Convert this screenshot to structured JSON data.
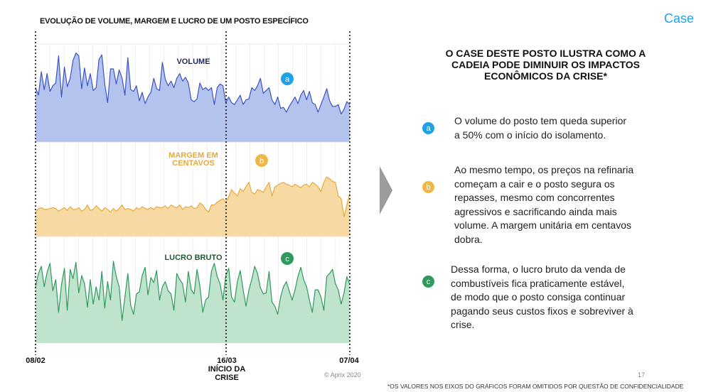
{
  "header": {
    "chart_title": "EVOLUÇÃO DE VOLUME, MARGEM E LUCRO DE UM POSTO ESPECÍFICO",
    "case_label": "Case"
  },
  "dates": {
    "start": "08/02",
    "middle": "16/03",
    "middle_note_1": "INÍCIO DA",
    "middle_note_2": "CRISE",
    "end": "07/04"
  },
  "footer": {
    "copyright": "© Aprix 2020",
    "page_number": "17",
    "footnote": "*OS VALORES NOS EIXOS DO GRÁFICOS FORAM OMITIDOS POR QUESTÃO DE CONFIDENCIALIDADE"
  },
  "right_panel": {
    "headline_1": "O CASE DESTE POSTO ILUSTRA COMO A",
    "headline_2": "CADEIA PODE DIMINUIR OS IMPACTOS",
    "headline_3": "ECONÔMICOS DA CRISE*",
    "points": [
      {
        "badge": "a",
        "color": "#1fa3e6",
        "lines": [
          "O volume do posto tem queda superior",
          "a 50% com o início do isolamento."
        ]
      },
      {
        "badge": "b",
        "color": "#f0b743",
        "lines": [
          "Ao mesmo tempo, os preços na refinaria",
          "começam a cair e o posto segura os",
          "repasses, mesmo com concorrentes",
          "agressivos e sacrificando ainda mais",
          "volume. A margem unitária em centavos",
          "dobra."
        ]
      },
      {
        "badge": "c",
        "color": "#2e9a5e",
        "lines": [
          "Dessa forma, o lucro bruto da venda de",
          "combustíveis fica praticamente estável,",
          " de  modo que o posto consiga continuar",
          "pagando seus custos fixos e sobreviver à",
          "crise."
        ]
      }
    ]
  },
  "colors": {
    "volume_line": "#3b55c8",
    "volume_fill": "#b4c2ee",
    "margem_line": "#e9a93c",
    "margem_fill": "#f7d9a3",
    "lucro_line": "#2f9a5e",
    "lucro_fill": "#bfe3cc",
    "volume_label": "#1e2a5a",
    "margem_label": "#e9a93c",
    "lucro_label": "#1f5a32",
    "badge_a": "#1fa3e6",
    "badge_b": "#f0b743",
    "badge_c": "#2e9a5e"
  },
  "chart_data": [
    {
      "type": "area",
      "title": "VOLUME",
      "badge": "a",
      "x_start": "08/02",
      "x_marker": "16/03",
      "x_end": "07/04",
      "axis_values_hidden": true,
      "series": [
        {
          "values": [
            58,
            50,
            75,
            56,
            73,
            54,
            60,
            63,
            92,
            48,
            80,
            59,
            68,
            87,
            95,
            92,
            57,
            79,
            60,
            73,
            55,
            58,
            88,
            93,
            62,
            42,
            78,
            78,
            62,
            77,
            68,
            50,
            90,
            56,
            54,
            60,
            44,
            53,
            41,
            48,
            53,
            68,
            57,
            55,
            85,
            67,
            60,
            65,
            58,
            68,
            73,
            65,
            69,
            63,
            45,
            43,
            46,
            63,
            56,
            58,
            55,
            58,
            40,
            58,
            62,
            60,
            42,
            48,
            42,
            40,
            45,
            50,
            40,
            45,
            46,
            58,
            55,
            60,
            68,
            52,
            55,
            58,
            45,
            40,
            48,
            36,
            37,
            32,
            38,
            43,
            48,
            41,
            50,
            55,
            45,
            54,
            42,
            40,
            32,
            40,
            48,
            57,
            44,
            38,
            38,
            40,
            30,
            35,
            43,
            40
          ]
        }
      ]
    },
    {
      "type": "area",
      "title": "MARGEM EM CENTAVOS",
      "badge": "b",
      "x_start": "08/02",
      "x_marker": "16/03",
      "x_end": "07/04",
      "axis_values_hidden": true,
      "series": [
        {
          "values": [
            27,
            31,
            32,
            30,
            30,
            31,
            32,
            31,
            28,
            30,
            32,
            29,
            33,
            30,
            30,
            32,
            28,
            30,
            35,
            29,
            30,
            34,
            31,
            28,
            32,
            30,
            27,
            31,
            28,
            31,
            35,
            30,
            31,
            30,
            28,
            32,
            30,
            33,
            31,
            30,
            32,
            30,
            33,
            32,
            32,
            34,
            31,
            35,
            33,
            32,
            35,
            30,
            33,
            32,
            34,
            31,
            32,
            37,
            35,
            30,
            27,
            35,
            35,
            38,
            40,
            42,
            38,
            44,
            52,
            48,
            45,
            53,
            50,
            55,
            60,
            49,
            47,
            52,
            51,
            49,
            55,
            60,
            45,
            55,
            57,
            59,
            60,
            58,
            57,
            55,
            58,
            56,
            54,
            57,
            58,
            55,
            60,
            58,
            55,
            50,
            60,
            66,
            64,
            61,
            60,
            45,
            42,
            22,
            35,
            48
          ]
        }
      ]
    },
    {
      "type": "area",
      "title": "LUCRO BRUTO",
      "badge": "c",
      "x_start": "08/02",
      "x_marker": "16/03",
      "x_end": "07/04",
      "axis_values_hidden": true,
      "series": [
        {
          "values": [
            55,
            68,
            75,
            55,
            69,
            78,
            51,
            62,
            30,
            57,
            73,
            32,
            72,
            63,
            79,
            49,
            66,
            58,
            35,
            62,
            38,
            55,
            42,
            70,
            34,
            60,
            42,
            80,
            65,
            55,
            22,
            45,
            68,
            37,
            28,
            48,
            50,
            66,
            74,
            47,
            64,
            59,
            71,
            42,
            55,
            60,
            51,
            48,
            32,
            68,
            62,
            58,
            40,
            70,
            52,
            48,
            72,
            56,
            30,
            42,
            45,
            70,
            78,
            65,
            58,
            42,
            66,
            73,
            45,
            40,
            60,
            71,
            52,
            36,
            52,
            62,
            75,
            68,
            54,
            48,
            49,
            70,
            40,
            36,
            28,
            45,
            55,
            60,
            51,
            42,
            52,
            65,
            74,
            62,
            55,
            42,
            30,
            52,
            52,
            45,
            32,
            65,
            68,
            72,
            58,
            52,
            38,
            49,
            65,
            57
          ]
        }
      ]
    }
  ]
}
